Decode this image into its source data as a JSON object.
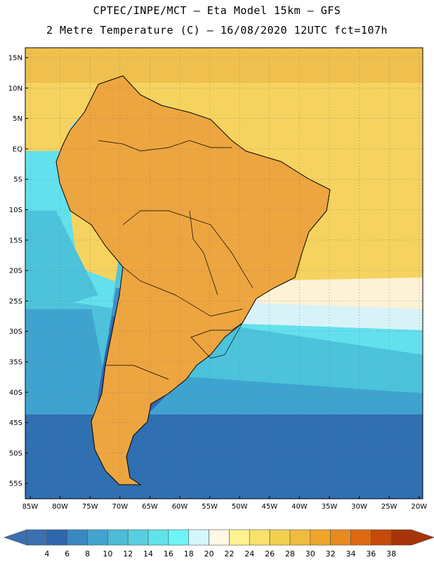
{
  "title_line1": "CPTEC/INPE/MCT –  Eta Model 15km – GFS",
  "title_line2": "2 Metre Temperature (C) – 16/08/2020 12UTC fct=107h",
  "lat_labels": [
    "15N",
    "10N",
    "5N",
    "EQ",
    "5S",
    "10S",
    "15S",
    "20S",
    "25S",
    "30S",
    "35S",
    "40S",
    "45S",
    "50S",
    "55S"
  ],
  "lon_labels": [
    "85W",
    "80W",
    "75W",
    "70W",
    "65W",
    "60W",
    "55W",
    "50W",
    "45W",
    "40W",
    "35W",
    "30W",
    "25W",
    "20W"
  ],
  "colorbar": {
    "labels": [
      "4",
      "6",
      "8",
      "10",
      "12",
      "14",
      "16",
      "18",
      "20",
      "22",
      "24",
      "26",
      "28",
      "30",
      "32",
      "34",
      "36",
      "38"
    ],
    "colors": [
      "#3a6fb0",
      "#2f66ad",
      "#3a88c2",
      "#43a3cf",
      "#4cbcd7",
      "#57cfe0",
      "#5fe3eb",
      "#6ef4f7",
      "#d4f7fb",
      "#fff6e4",
      "#fdf28e",
      "#f9e26b",
      "#f3cf51",
      "#f0bb3f",
      "#efa52a",
      "#e88a1f",
      "#dd6a12",
      "#c64a0a",
      "#a63408"
    ],
    "low_color": "#3a6fb0",
    "high_color": "#a63408"
  },
  "field_colors": {
    "ocean_warm": "#f6d35f",
    "ocean_hot": "#efc04d",
    "ocean_cream": "#fdf2d5",
    "ocean_pale": "#d8f3f8",
    "ocean_cyan": "#63e0ee",
    "ocean_teal": "#4cc3da",
    "ocean_mid": "#3fa3d0",
    "ocean_deep": "#2f6fb2",
    "land_orange": "#eda540",
    "land_darkorange": "#e2862a",
    "land_red": "#d4701c",
    "land_yellow": "#f3c84c",
    "land_light": "#8fe6ef",
    "land_cyan": "#52c6db",
    "land_blue": "#3d8ec8",
    "land_darkblue": "#3366b0",
    "border": "#000000"
  }
}
